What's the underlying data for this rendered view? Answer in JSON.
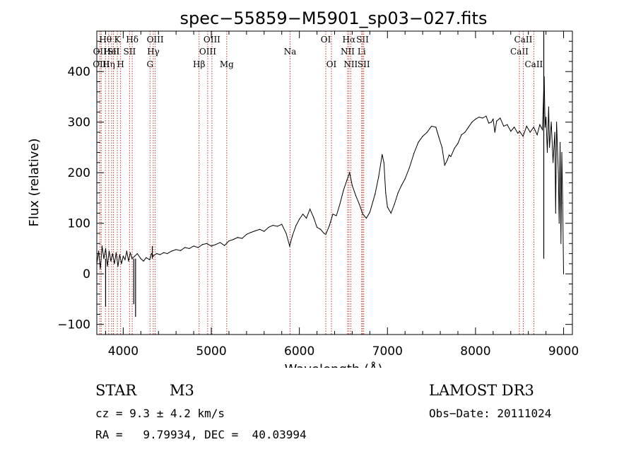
{
  "chart_data": {
    "type": "line",
    "title": "spec−55859−M5901_sp03−027.fits",
    "xlabel": "Wavelength (Å)",
    "ylabel": "Flux (relative)",
    "xlim": [
      3700,
      9100
    ],
    "ylim": [
      -120,
      480
    ],
    "xticks": [
      4000,
      5000,
      6000,
      7000,
      8000,
      9000
    ],
    "xtick_labels": [
      "4000",
      "5000",
      "6000",
      "7000",
      "8000",
      "9000"
    ],
    "yticks": [
      -100,
      0,
      100,
      200,
      300,
      400
    ],
    "ytick_labels": [
      "−100",
      "0",
      "100",
      "200",
      "300",
      "400"
    ],
    "grid": false,
    "series": [
      {
        "name": "flux",
        "color": "#000000",
        "points": [
          [
            3700,
            20
          ],
          [
            3720,
            45
          ],
          [
            3740,
            10
          ],
          [
            3760,
            55
          ],
          [
            3780,
            30
          ],
          [
            3800,
            50
          ],
          [
            3820,
            15
          ],
          [
            3840,
            45
          ],
          [
            3860,
            25
          ],
          [
            3880,
            40
          ],
          [
            3900,
            20
          ],
          [
            3920,
            42
          ],
          [
            3940,
            15
          ],
          [
            3960,
            38
          ],
          [
            3980,
            20
          ],
          [
            4000,
            35
          ],
          [
            4020,
            28
          ],
          [
            4040,
            45
          ],
          [
            4060,
            25
          ],
          [
            4080,
            42
          ],
          [
            4100,
            30
          ],
          [
            4130,
            35
          ],
          [
            4160,
            40
          ],
          [
            4200,
            30
          ],
          [
            4230,
            25
          ],
          [
            4260,
            32
          ],
          [
            4300,
            28
          ],
          [
            4320,
            40
          ],
          [
            4340,
            35
          ],
          [
            4360,
            38
          ],
          [
            4380,
            40
          ],
          [
            4420,
            38
          ],
          [
            4460,
            42
          ],
          [
            4500,
            40
          ],
          [
            4550,
            45
          ],
          [
            4600,
            48
          ],
          [
            4650,
            46
          ],
          [
            4700,
            52
          ],
          [
            4750,
            50
          ],
          [
            4800,
            55
          ],
          [
            4850,
            52
          ],
          [
            4900,
            58
          ],
          [
            4950,
            60
          ],
          [
            5000,
            55
          ],
          [
            5050,
            58
          ],
          [
            5100,
            62
          ],
          [
            5150,
            56
          ],
          [
            5200,
            65
          ],
          [
            5250,
            68
          ],
          [
            5300,
            72
          ],
          [
            5350,
            70
          ],
          [
            5400,
            78
          ],
          [
            5450,
            82
          ],
          [
            5500,
            85
          ],
          [
            5550,
            88
          ],
          [
            5600,
            84
          ],
          [
            5650,
            92
          ],
          [
            5700,
            96
          ],
          [
            5750,
            94
          ],
          [
            5800,
            98
          ],
          [
            5850,
            80
          ],
          [
            5890,
            55
          ],
          [
            5920,
            75
          ],
          [
            5960,
            95
          ],
          [
            6000,
            108
          ],
          [
            6040,
            118
          ],
          [
            6080,
            110
          ],
          [
            6120,
            128
          ],
          [
            6160,
            112
          ],
          [
            6200,
            92
          ],
          [
            6240,
            88
          ],
          [
            6280,
            80
          ],
          [
            6300,
            78
          ],
          [
            6340,
            95
          ],
          [
            6380,
            118
          ],
          [
            6420,
            115
          ],
          [
            6460,
            138
          ],
          [
            6500,
            165
          ],
          [
            6540,
            185
          ],
          [
            6570,
            200
          ],
          [
            6600,
            175
          ],
          [
            6640,
            155
          ],
          [
            6680,
            138
          ],
          [
            6720,
            118
          ],
          [
            6760,
            110
          ],
          [
            6800,
            122
          ],
          [
            6860,
            158
          ],
          [
            6900,
            192
          ],
          [
            6940,
            236
          ],
          [
            6960,
            220
          ],
          [
            6980,
            160
          ],
          [
            7000,
            132
          ],
          [
            7040,
            120
          ],
          [
            7080,
            138
          ],
          [
            7120,
            160
          ],
          [
            7160,
            175
          ],
          [
            7200,
            188
          ],
          [
            7250,
            210
          ],
          [
            7300,
            238
          ],
          [
            7350,
            260
          ],
          [
            7400,
            272
          ],
          [
            7450,
            280
          ],
          [
            7500,
            292
          ],
          [
            7550,
            290
          ],
          [
            7580,
            272
          ],
          [
            7620,
            250
          ],
          [
            7650,
            215
          ],
          [
            7680,
            225
          ],
          [
            7700,
            235
          ],
          [
            7720,
            232
          ],
          [
            7760,
            248
          ],
          [
            7800,
            258
          ],
          [
            7840,
            275
          ],
          [
            7880,
            280
          ],
          [
            7920,
            290
          ],
          [
            7960,
            300
          ],
          [
            8000,
            306
          ],
          [
            8040,
            310
          ],
          [
            8080,
            308
          ],
          [
            8120,
            312
          ],
          [
            8150,
            298
          ],
          [
            8180,
            300
          ],
          [
            8200,
            306
          ],
          [
            8220,
            280
          ],
          [
            8240,
            302
          ],
          [
            8280,
            308
          ],
          [
            8320,
            292
          ],
          [
            8360,
            295
          ],
          [
            8400,
            282
          ],
          [
            8440,
            290
          ],
          [
            8480,
            278
          ],
          [
            8500,
            282
          ],
          [
            8540,
            272
          ],
          [
            8580,
            292
          ],
          [
            8620,
            280
          ],
          [
            8660,
            290
          ],
          [
            8700,
            275
          ],
          [
            8730,
            295
          ],
          [
            8760,
            285
          ],
          [
            8780,
            390
          ],
          [
            8790,
            290
          ],
          [
            8800,
            310
          ],
          [
            8815,
            240
          ],
          [
            8830,
            330
          ],
          [
            8840,
            250
          ],
          [
            8860,
            300
          ],
          [
            8880,
            220
          ],
          [
            8900,
            280
          ],
          [
            8910,
            120
          ],
          [
            8920,
            300
          ],
          [
            8940,
            200
          ],
          [
            8950,
            100
          ],
          [
            8960,
            260
          ],
          [
            8970,
            60
          ],
          [
            8980,
            240
          ],
          [
            8990,
            140
          ],
          [
            9000,
            0
          ]
        ]
      }
    ],
    "spikes": [
      {
        "x": 3800,
        "y": -65
      },
      {
        "x": 4120,
        "y": -60
      },
      {
        "x": 4140,
        "y": -85
      },
      {
        "x": 4330,
        "y": 55
      },
      {
        "x": 8775,
        "y": 480
      }
    ],
    "line_markers": [
      {
        "x": 3734,
        "label": "OII",
        "row": 2,
        "color": "#c0392b"
      },
      {
        "x": 3750,
        "label": "OIII",
        "row": 3,
        "color": "#c0392b"
      },
      {
        "x": 3798,
        "label": "Hθ",
        "row": 1,
        "color": "#c0392b"
      },
      {
        "x": 3835,
        "label": "Hη",
        "row": 3,
        "color": "#c0392b"
      },
      {
        "x": 3868,
        "label": "HeI",
        "row": 2,
        "color": "#c0392b"
      },
      {
        "x": 3889,
        "label": "SII",
        "row": 2,
        "color": "#c0392b"
      },
      {
        "x": 3933,
        "label": "K",
        "row": 1,
        "color": "#c0392b"
      },
      {
        "x": 3970,
        "label": "H",
        "row": 3,
        "color": "#c0392b"
      },
      {
        "x": 4072,
        "label": "SII",
        "row": 2,
        "color": "#c0392b"
      },
      {
        "x": 4102,
        "label": "Hδ",
        "row": 1,
        "color": "#c0392b"
      },
      {
        "x": 4304,
        "label": "G",
        "row": 3,
        "color": "#c0392b"
      },
      {
        "x": 4341,
        "label": "Hγ",
        "row": 2,
        "color": "#c0392b"
      },
      {
        "x": 4363,
        "label": "OIII",
        "row": 1,
        "color": "#c0392b"
      },
      {
        "x": 4861,
        "label": "Hβ",
        "row": 3,
        "color": "#c0392b"
      },
      {
        "x": 4959,
        "label": "OIII",
        "row": 2,
        "color": "#c0392b"
      },
      {
        "x": 5007,
        "label": "OIII",
        "row": 1,
        "color": "#c0392b"
      },
      {
        "x": 5175,
        "label": "Mg",
        "row": 3,
        "color": "#c0392b"
      },
      {
        "x": 5894,
        "label": "Na",
        "row": 2,
        "color": "#c0392b"
      },
      {
        "x": 6300,
        "label": "OI",
        "row": 1,
        "color": "#c0392b"
      },
      {
        "x": 6364,
        "label": "OI",
        "row": 3,
        "color": "#c0392b"
      },
      {
        "x": 6548,
        "label": "NII",
        "row": 2,
        "color": "#c0392b"
      },
      {
        "x": 6563,
        "label": "Hα",
        "row": 1,
        "color": "#c0392b"
      },
      {
        "x": 6583,
        "label": "NII",
        "row": 3,
        "color": "#c0392b"
      },
      {
        "x": 6707,
        "label": "Li",
        "row": 2,
        "color": "#c0392b"
      },
      {
        "x": 6717,
        "label": "SII",
        "row": 1,
        "color": "#c0392b"
      },
      {
        "x": 6731,
        "label": "SII",
        "row": 3,
        "color": "#c0392b"
      },
      {
        "x": 8498,
        "label": "CaII",
        "row": 2,
        "color": "#c0392b"
      },
      {
        "x": 8542,
        "label": "CaII",
        "row": 1,
        "color": "#c0392b"
      },
      {
        "x": 8662,
        "label": "CaII",
        "row": 3,
        "color": "#c0392b"
      }
    ]
  },
  "info": {
    "object_type": "STAR",
    "subclass": "M3",
    "survey": "LAMOST DR3",
    "cz_line": "cz = 9.3 ± 4.2 km/s",
    "obs_date": "Obs−Date: 20111024",
    "radec_line": "RA =   9.79934, DEC =  40.03994"
  }
}
